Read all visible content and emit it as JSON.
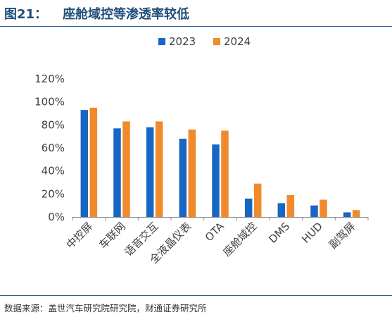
{
  "figure": {
    "number": "图21：",
    "title": "座舱域控等渗透率较低"
  },
  "source": "数据来源：盖世汽车研究院研究院，财通证券研究所",
  "chart_data": {
    "type": "bar",
    "title": "",
    "xlabel": "",
    "ylabel": "",
    "categories": [
      "中控屏",
      "车联网",
      "语音交互",
      "全液晶仪表",
      "OTA",
      "座舱域控",
      "DMS",
      "HUD",
      "副驾屏"
    ],
    "series": [
      {
        "name": "2023",
        "color": "#1766c2",
        "values": [
          93,
          77,
          78,
          68,
          63,
          16,
          12,
          10,
          4
        ]
      },
      {
        "name": "2024",
        "color": "#f08a2b",
        "values": [
          95,
          83,
          83,
          76,
          75,
          29,
          19,
          15,
          6
        ]
      }
    ],
    "ylim": [
      0,
      120
    ],
    "yticks": [
      0,
      20,
      40,
      60,
      80,
      100,
      120
    ],
    "ytick_labels": [
      "0%",
      "20%",
      "40%",
      "60%",
      "80%",
      "100%",
      "120%"
    ],
    "legend_position": "top-center",
    "grid": false
  }
}
